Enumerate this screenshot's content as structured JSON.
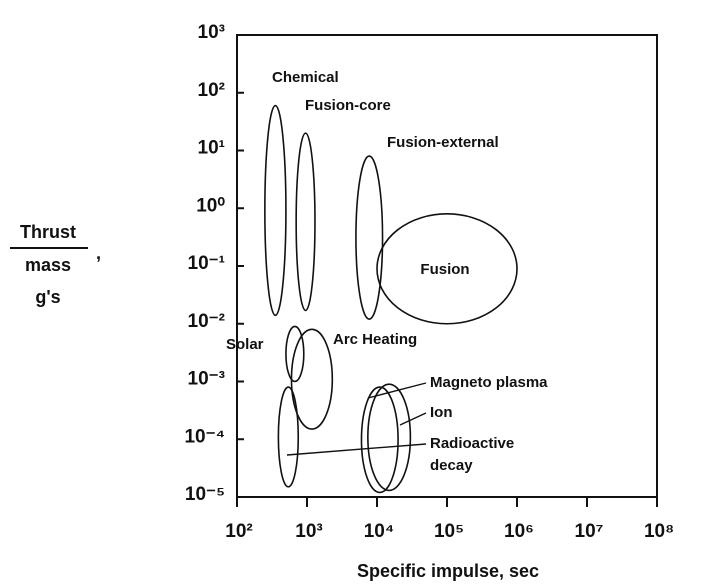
{
  "chart_data": {
    "type": "region",
    "xlabel": "Specific impulse, sec",
    "ylabel": {
      "numerator": "Thrust",
      "denominator": "mass",
      "separator": ",",
      "units": "g's"
    },
    "log_x": true,
    "log_y": true,
    "xlim": [
      100,
      100000000
    ],
    "ylim": [
      1e-05,
      1000
    ],
    "xticks": [
      {
        "value": 100,
        "label": "10²"
      },
      {
        "value": 1000,
        "label": "10³"
      },
      {
        "value": 10000,
        "label": "10⁴"
      },
      {
        "value": 100000,
        "label": "10⁵"
      },
      {
        "value": 1000000,
        "label": "10⁶"
      },
      {
        "value": 10000000,
        "label": "10⁷"
      },
      {
        "value": 100000000,
        "label": "10⁸"
      }
    ],
    "yticks": [
      {
        "value": 1000,
        "label": "10³"
      },
      {
        "value": 100,
        "label": "10²"
      },
      {
        "value": 10,
        "label": "10¹"
      },
      {
        "value": 1,
        "label": "10⁰"
      },
      {
        "value": 0.1,
        "label": "10⁻¹"
      },
      {
        "value": 0.01,
        "label": "10⁻²"
      },
      {
        "value": 0.001,
        "label": "10⁻³"
      },
      {
        "value": 0.0001,
        "label": "10⁻⁴"
      },
      {
        "value": 1e-05,
        "label": "10⁻⁵"
      }
    ],
    "regions": [
      {
        "name": "Chemical",
        "xlim": [
          250,
          500
        ],
        "ylim": [
          0.014,
          60
        ]
      },
      {
        "name": "Fusion-core",
        "xlim": [
          700,
          1300
        ],
        "ylim": [
          0.017,
          20
        ]
      },
      {
        "name": "Fusion-external",
        "xlim": [
          5000,
          12000
        ],
        "ylim": [
          0.012,
          8
        ]
      },
      {
        "name": "Fusion",
        "xlim": [
          10000,
          1000000
        ],
        "ylim": [
          0.01,
          0.8
        ]
      },
      {
        "name": "Solar",
        "xlim": [
          500,
          900
        ],
        "ylim": [
          0.001,
          0.009
        ]
      },
      {
        "name": "Arc Heating",
        "xlim": [
          600,
          2300
        ],
        "ylim": [
          0.00015,
          0.008
        ]
      },
      {
        "name": "Magneto plasma",
        "xlim": [
          6000,
          20000
        ],
        "ylim": [
          1.2e-05,
          0.0008
        ]
      },
      {
        "name": "Ion",
        "xlim": [
          7400,
          30000
        ],
        "ylim": [
          1.3e-05,
          0.0009
        ]
      },
      {
        "name": "Radioactive decay",
        "xlim": [
          390,
          750
        ],
        "ylim": [
          1.5e-05,
          0.0008
        ]
      }
    ]
  }
}
